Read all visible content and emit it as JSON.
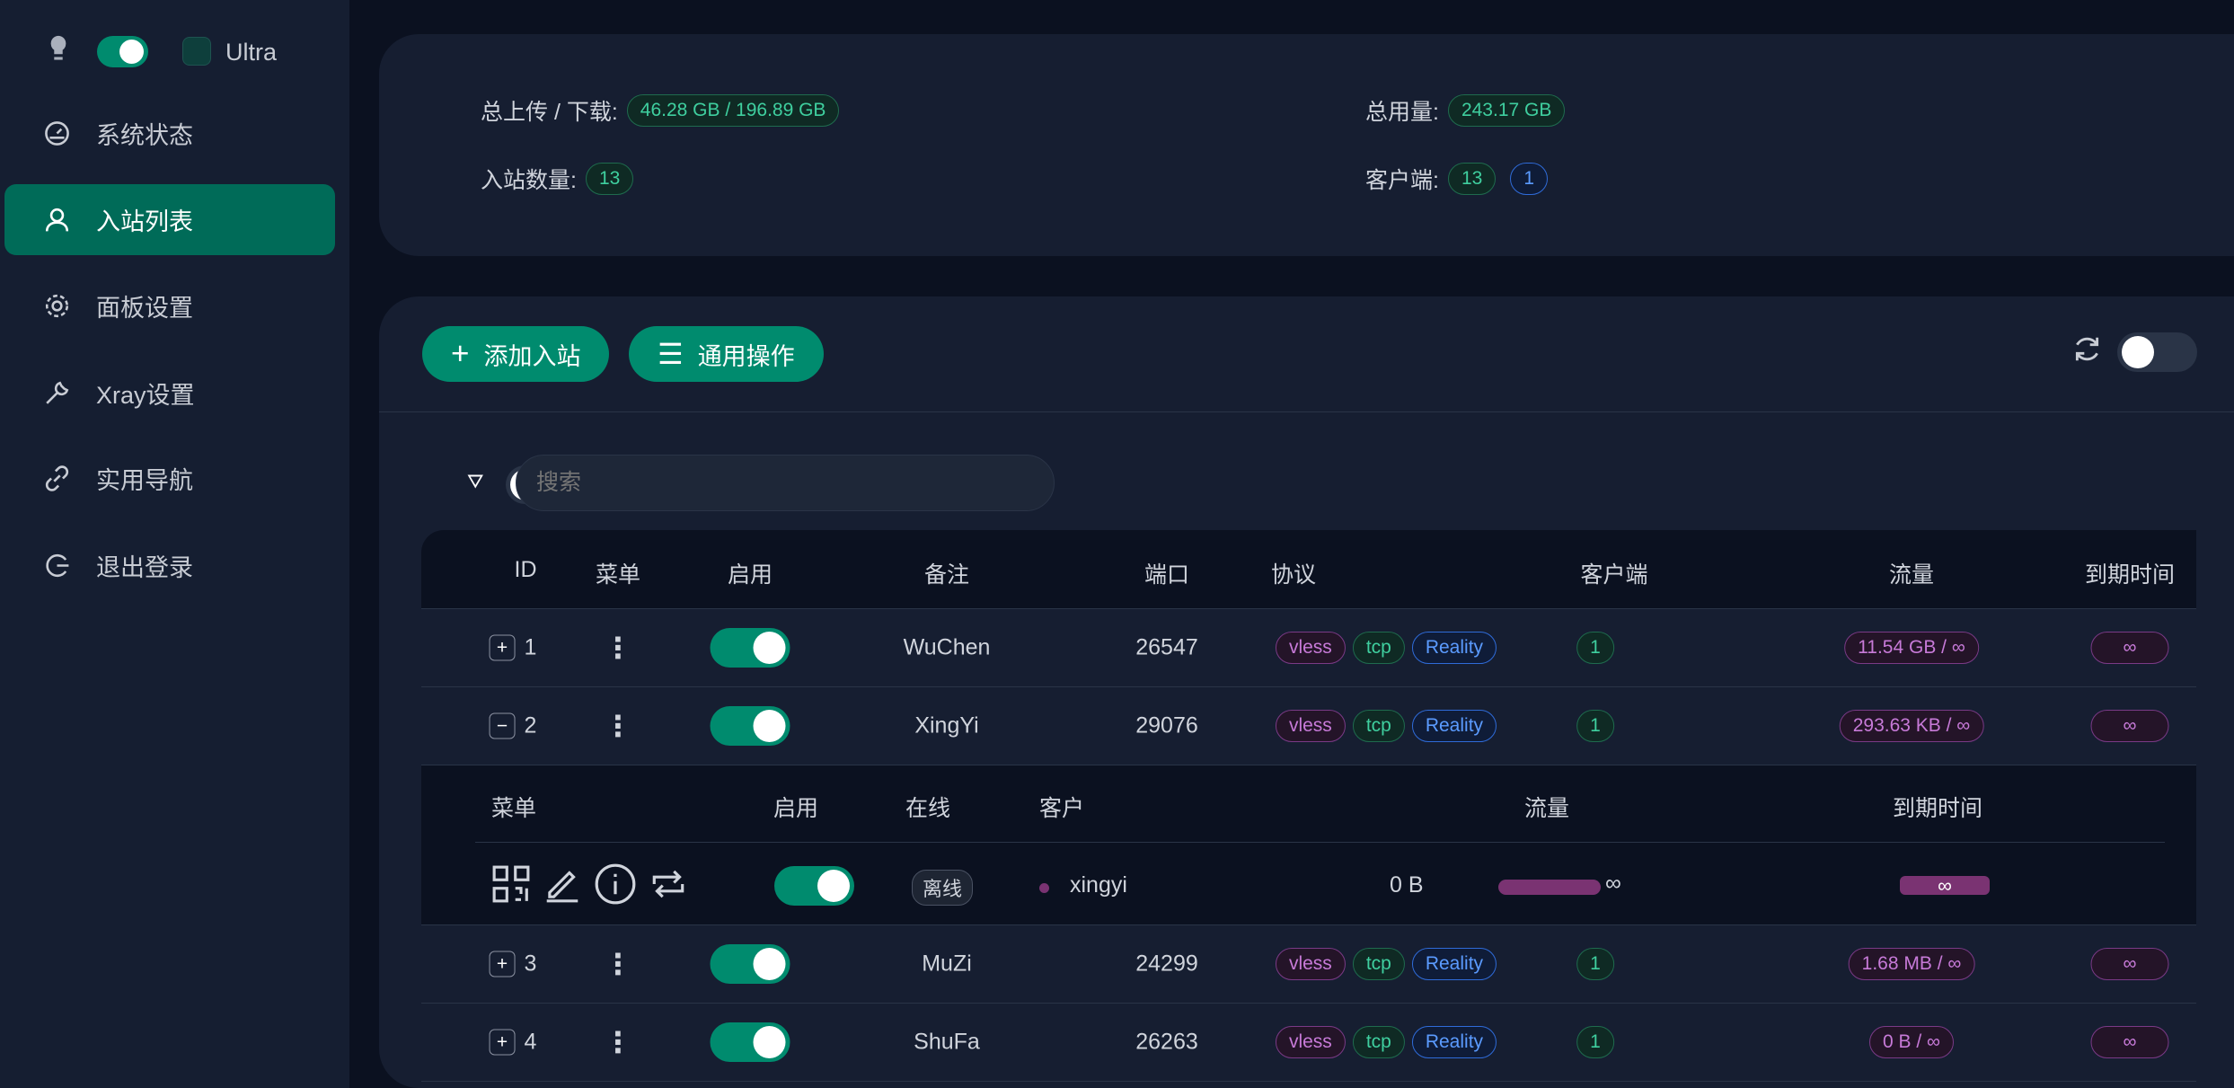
{
  "sidebar": {
    "theme_label": "Ultra",
    "items": [
      {
        "label": "系统状态",
        "icon": "dashboard-icon"
      },
      {
        "label": "入站列表",
        "icon": "user-icon",
        "active": true
      },
      {
        "label": "面板设置",
        "icon": "gear-icon"
      },
      {
        "label": "Xray设置",
        "icon": "wrench-icon"
      },
      {
        "label": "实用导航",
        "icon": "link-icon"
      },
      {
        "label": "退出登录",
        "icon": "logout-icon"
      }
    ]
  },
  "stats": {
    "updown_label": "总上传 / 下载:",
    "updown_value": "46.28 GB / 196.89 GB",
    "total_label": "总用量:",
    "total_value": "243.17 GB",
    "inbound_label": "入站数量:",
    "inbound_value": "13",
    "clients_label": "客户端:",
    "clients_value": "13",
    "clients_online": "1"
  },
  "toolbar": {
    "add_label": "添加入站",
    "ops_label": "通用操作",
    "search_placeholder": "搜索"
  },
  "table": {
    "headers": [
      "ID",
      "菜单",
      "启用",
      "备注",
      "端口",
      "协议",
      "客户端",
      "流量",
      "到期时间"
    ],
    "rows": [
      {
        "expander": "+",
        "id": "1",
        "remark": "WuChen",
        "port": "26547",
        "protocols": [
          "vless",
          "tcp",
          "Reality"
        ],
        "clients": "1",
        "traffic": "11.54 GB / ∞",
        "expiry": "∞"
      },
      {
        "expander": "−",
        "id": "2",
        "remark": "XingYi",
        "port": "29076",
        "protocols": [
          "vless",
          "tcp",
          "Reality"
        ],
        "clients": "1",
        "traffic": "293.63 KB / ∞",
        "expiry": "∞"
      },
      {
        "expander": "+",
        "id": "3",
        "remark": "MuZi",
        "port": "24299",
        "protocols": [
          "vless",
          "tcp",
          "Reality"
        ],
        "clients": "1",
        "traffic": "1.68 MB / ∞",
        "expiry": "∞"
      },
      {
        "expander": "+",
        "id": "4",
        "remark": "ShuFa",
        "port": "26263",
        "protocols": [
          "vless",
          "tcp",
          "Reality"
        ],
        "clients": "1",
        "traffic": "0 B / ∞",
        "expiry": "∞"
      }
    ]
  },
  "client_table": {
    "headers": [
      "菜单",
      "启用",
      "在线",
      "客户",
      "流量",
      "到期时间"
    ],
    "row": {
      "online": "离线",
      "email": "xingyi",
      "traffic": "0 B",
      "limit": "∞",
      "expiry": "∞"
    }
  },
  "colors": {
    "accent": "#008b6e",
    "active_nav": "#006b58",
    "purple": "#7a3372"
  }
}
